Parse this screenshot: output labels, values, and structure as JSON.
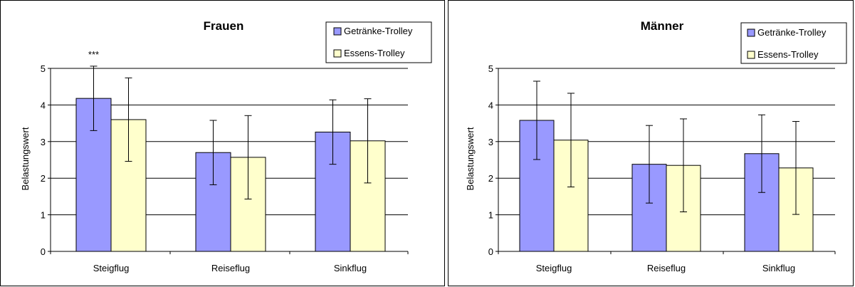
{
  "chart_data": [
    {
      "type": "bar",
      "title": "Frauen",
      "xlabel": "",
      "ylabel": "Belastungswert",
      "ylim": [
        0,
        5
      ],
      "yticks": [
        0,
        1,
        2,
        3,
        4,
        5
      ],
      "grid": "horizontal",
      "legend_position": "top-right",
      "categories": [
        "Steigflug",
        "Reiseflug",
        "Sinkflug"
      ],
      "series": [
        {
          "name": "Getränke-Trolley",
          "color": "#9999FF",
          "values": [
            4.18,
            2.7,
            3.26
          ],
          "error": [
            0.88,
            0.88,
            0.88
          ]
        },
        {
          "name": "Essens-Trolley",
          "color": "#FFFFCC",
          "values": [
            3.6,
            2.57,
            3.02
          ],
          "error": [
            1.14,
            1.14,
            1.15
          ]
        }
      ],
      "annotations": [
        {
          "text": "***",
          "category": "Steigflug",
          "series": "Getränke-Trolley"
        }
      ]
    },
    {
      "type": "bar",
      "title": "Männer",
      "xlabel": "",
      "ylabel": "Belastungswert",
      "ylim": [
        0,
        5
      ],
      "yticks": [
        0,
        1,
        2,
        3,
        4,
        5
      ],
      "grid": "horizontal",
      "legend_position": "top-right",
      "categories": [
        "Steigflug",
        "Reiseflug",
        "Sinkflug"
      ],
      "series": [
        {
          "name": "Getränke-Trolley",
          "color": "#9999FF",
          "values": [
            3.58,
            2.38,
            2.67
          ],
          "error": [
            1.07,
            1.06,
            1.06
          ]
        },
        {
          "name": "Essens-Trolley",
          "color": "#FFFFCC",
          "values": [
            3.04,
            2.35,
            2.28
          ],
          "error": [
            1.28,
            1.27,
            1.27
          ]
        }
      ],
      "annotations": []
    }
  ]
}
